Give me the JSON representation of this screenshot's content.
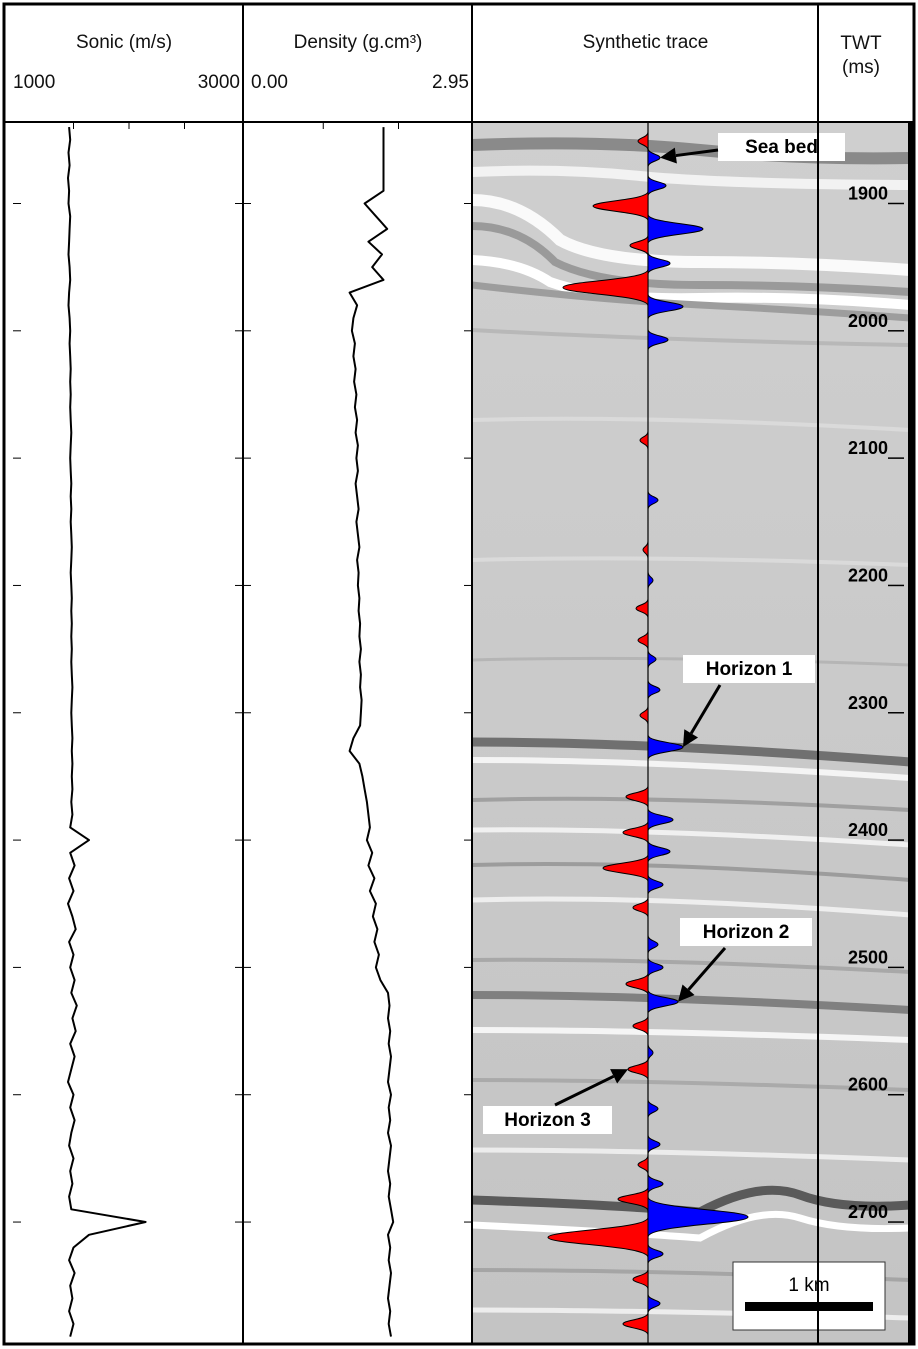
{
  "chart_data": [
    {
      "type": "line",
      "title": "Sonic (m/s)",
      "color": "#000000",
      "xlim": [
        1000,
        3000
      ],
      "xticks": [
        1000,
        3000
      ],
      "minor_xticks": [
        1500,
        2000,
        2500
      ],
      "ylim": [
        1836,
        2795
      ],
      "yticks": [
        1900,
        2000,
        2100,
        2200,
        2300,
        2400,
        2500,
        2600,
        2700
      ],
      "x": [
        1840,
        1850,
        1860,
        1870,
        1880,
        1890,
        1900,
        1910,
        1920,
        1930,
        1940,
        1950,
        1960,
        1970,
        1980,
        1990,
        2000,
        2010,
        2020,
        2030,
        2040,
        2050,
        2060,
        2070,
        2080,
        2090,
        2100,
        2110,
        2120,
        2130,
        2140,
        2150,
        2160,
        2170,
        2180,
        2190,
        2200,
        2210,
        2220,
        2230,
        2240,
        2250,
        2260,
        2270,
        2280,
        2290,
        2300,
        2310,
        2320,
        2330,
        2340,
        2350,
        2360,
        2370,
        2380,
        2390,
        2400,
        2410,
        2420,
        2430,
        2440,
        2450,
        2460,
        2470,
        2480,
        2490,
        2500,
        2510,
        2520,
        2530,
        2540,
        2550,
        2560,
        2570,
        2580,
        2590,
        2600,
        2610,
        2620,
        2630,
        2640,
        2650,
        2660,
        2670,
        2680,
        2690,
        2700,
        2710,
        2720,
        2730,
        2740,
        2750,
        2760,
        2770,
        2780,
        2790
      ],
      "values": [
        1460,
        1470,
        1455,
        1465,
        1450,
        1460,
        1455,
        1470,
        1465,
        1460,
        1455,
        1465,
        1470,
        1460,
        1455,
        1465,
        1470,
        1465,
        1470,
        1475,
        1470,
        1475,
        1470,
        1475,
        1480,
        1475,
        1470,
        1475,
        1480,
        1475,
        1480,
        1475,
        1480,
        1485,
        1480,
        1475,
        1480,
        1485,
        1480,
        1485,
        1480,
        1485,
        1480,
        1485,
        1490,
        1485,
        1480,
        1485,
        1490,
        1485,
        1490,
        1485,
        1490,
        1480,
        1490,
        1470,
        1640,
        1470,
        1510,
        1460,
        1500,
        1450,
        1490,
        1520,
        1460,
        1500,
        1470,
        1510,
        1480,
        1530,
        1490,
        1520,
        1470,
        1510,
        1480,
        1450,
        1500,
        1470,
        1510,
        1480,
        1460,
        1500,
        1470,
        1490,
        1460,
        1480,
        2150,
        1640,
        1500,
        1460,
        1510,
        1470,
        1490,
        1460,
        1500,
        1470
      ]
    },
    {
      "type": "line",
      "title": "Density (g.cm³)",
      "color": "#000000",
      "xlim": [
        0,
        2.95
      ],
      "xticks": [
        {
          "value": 0,
          "label": "0.00"
        },
        {
          "value": 2.95,
          "label": "2.95"
        }
      ],
      "minor_xticks": [
        1,
        2
      ],
      "ylim": [
        1836,
        2795
      ],
      "yticks": [
        1900,
        2000,
        2100,
        2200,
        2300,
        2400,
        2500,
        2600,
        2700
      ],
      "x": [
        1840,
        1850,
        1860,
        1870,
        1880,
        1890,
        1900,
        1910,
        1920,
        1930,
        1940,
        1950,
        1960,
        1970,
        1980,
        1990,
        2000,
        2010,
        2020,
        2030,
        2040,
        2050,
        2060,
        2070,
        2080,
        2090,
        2100,
        2110,
        2120,
        2130,
        2140,
        2150,
        2160,
        2170,
        2180,
        2190,
        2200,
        2210,
        2220,
        2230,
        2240,
        2250,
        2260,
        2270,
        2280,
        2290,
        2300,
        2310,
        2320,
        2330,
        2340,
        2350,
        2360,
        2370,
        2380,
        2390,
        2400,
        2410,
        2420,
        2430,
        2440,
        2450,
        2460,
        2470,
        2480,
        2490,
        2500,
        2510,
        2520,
        2530,
        2540,
        2550,
        2560,
        2570,
        2580,
        2590,
        2600,
        2610,
        2620,
        2630,
        2640,
        2650,
        2660,
        2670,
        2680,
        2690,
        2700,
        2710,
        2720,
        2730,
        2740,
        2750,
        2760,
        2770,
        2780,
        2790
      ],
      "values": [
        1.8,
        1.8,
        1.8,
        1.8,
        1.8,
        1.8,
        1.55,
        1.7,
        1.85,
        1.6,
        1.78,
        1.65,
        1.8,
        1.35,
        1.45,
        1.4,
        1.38,
        1.42,
        1.4,
        1.43,
        1.41,
        1.44,
        1.42,
        1.45,
        1.43,
        1.46,
        1.44,
        1.46,
        1.43,
        1.45,
        1.47,
        1.44,
        1.46,
        1.48,
        1.45,
        1.47,
        1.46,
        1.48,
        1.47,
        1.49,
        1.48,
        1.5,
        1.48,
        1.5,
        1.49,
        1.51,
        1.5,
        1.49,
        1.4,
        1.35,
        1.48,
        1.52,
        1.55,
        1.58,
        1.6,
        1.62,
        1.58,
        1.65,
        1.6,
        1.68,
        1.62,
        1.7,
        1.66,
        1.72,
        1.68,
        1.74,
        1.7,
        1.76,
        1.86,
        1.88,
        1.86,
        1.89,
        1.87,
        1.9,
        1.88,
        1.86,
        1.9,
        1.87,
        1.89,
        1.86,
        1.9,
        1.88,
        1.86,
        1.89,
        1.87,
        1.9,
        1.93,
        1.86,
        1.89,
        1.87,
        1.9,
        1.88,
        1.86,
        1.89,
        1.87,
        1.9
      ]
    },
    {
      "type": "wiggle",
      "title": "Synthetic trace",
      "y_label": "TWT (ms)",
      "positive_color": "#0000ff",
      "negative_color": "#ff0000",
      "ylim": [
        1836,
        2795
      ],
      "yticks": [
        1900,
        2000,
        2100,
        2200,
        2300,
        2400,
        2500,
        2600,
        2700
      ],
      "x": [
        1851,
        1864,
        1886,
        1902,
        1920,
        1933,
        1947,
        1966,
        1981,
        2007,
        2086,
        2133,
        2172,
        2196,
        2218,
        2243,
        2258,
        2282,
        2302,
        2327,
        2366,
        2384,
        2394,
        2409,
        2422,
        2435,
        2453,
        2482,
        2500,
        2513,
        2527,
        2546,
        2567,
        2580,
        2611,
        2639,
        2655,
        2670,
        2682,
        2696,
        2712,
        2725,
        2745,
        2764,
        2780
      ],
      "values": [
        -10,
        12,
        18,
        -55,
        55,
        -18,
        22,
        -85,
        35,
        20,
        -8,
        10,
        -5,
        5,
        -12,
        -10,
        8,
        12,
        -8,
        35,
        -22,
        25,
        -25,
        22,
        -45,
        15,
        -15,
        10,
        15,
        -22,
        30,
        -15,
        5,
        -20,
        10,
        12,
        -10,
        15,
        -30,
        100,
        -100,
        15,
        -15,
        12,
        -25
      ],
      "annotations": [
        "Sea bed",
        "Horizon 1",
        "Horizon 2",
        "Horizon 3"
      ],
      "scale_bar": "1 km"
    }
  ]
}
